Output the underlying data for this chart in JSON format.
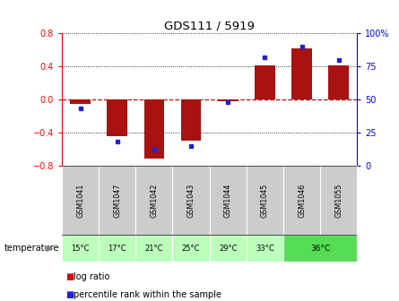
{
  "title": "GDS111 / 5919",
  "samples": [
    "GSM1041",
    "GSM1047",
    "GSM1042",
    "GSM1043",
    "GSM1044",
    "GSM1045",
    "GSM1046",
    "GSM1055"
  ],
  "temperatures": [
    "15°C",
    "17°C",
    "21°C",
    "25°C",
    "29°C",
    "33°C",
    "36°C",
    "36°C"
  ],
  "log_ratios": [
    -0.05,
    -0.45,
    -0.72,
    -0.5,
    -0.02,
    0.41,
    0.62,
    0.41
  ],
  "percentile_ranks": [
    43,
    18,
    12,
    15,
    48,
    82,
    90,
    80
  ],
  "bar_color": "#AA1111",
  "dot_color": "#2222CC",
  "ylim_left": [
    -0.8,
    0.8
  ],
  "ylim_right": [
    0,
    100
  ],
  "yticks_left": [
    -0.8,
    -0.4,
    0,
    0.4,
    0.8
  ],
  "yticks_right": [
    0,
    25,
    50,
    75,
    100
  ],
  "temp_color_light": "#BBFFBB",
  "temp_color_strong": "#55DD55",
  "sample_bg_color": "#CCCCCC",
  "legend_log_color": "#CC1111",
  "legend_dot_color": "#2222CC",
  "temperature_label": "temperature"
}
